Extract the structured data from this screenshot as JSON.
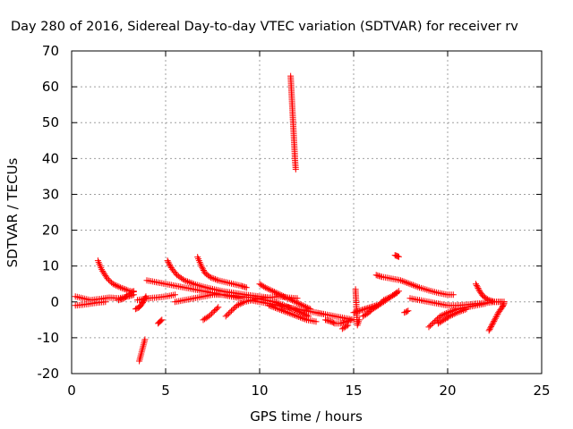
{
  "chart_data": {
    "type": "scatter",
    "title": "Day 280 of 2016, Sidereal Day-to-day VTEC variation (SDTVAR) for receiver rv",
    "xlabel": "GPS time / hours",
    "ylabel": "SDTVAR / TECUs",
    "xlim": [
      0,
      25
    ],
    "ylim": [
      -20,
      70
    ],
    "xticks": [
      0,
      5,
      10,
      15,
      20,
      25
    ],
    "yticks": [
      -20,
      -10,
      0,
      10,
      20,
      30,
      40,
      50,
      60,
      70
    ],
    "grid": true,
    "marker": "+",
    "series": [
      {
        "name": "SDTVAR",
        "color": "#ff0000",
        "segments": [
          {
            "x": [
              0.2,
              0.6,
              1.0,
              1.5,
              2.0,
              2.5,
              3.0,
              3.3
            ],
            "y": [
              1.5,
              1.0,
              0.5,
              0.8,
              1.2,
              1.0,
              1.5,
              2.0
            ]
          },
          {
            "x": [
              0.2,
              0.6,
              1.0,
              1.4,
              1.8
            ],
            "y": [
              -1.0,
              -0.8,
              -0.5,
              -0.2,
              0.0
            ]
          },
          {
            "x": [
              1.4,
              1.6,
              1.9,
              2.2,
              2.6,
              3.0,
              3.3
            ],
            "y": [
              11.5,
              9.0,
              6.5,
              5.0,
              4.0,
              3.2,
              2.8
            ]
          },
          {
            "x": [
              2.5,
              2.8,
              3.0,
              3.3
            ],
            "y": [
              0.5,
              1.0,
              2.0,
              3.0
            ]
          },
          {
            "x": [
              3.4,
              3.6,
              3.75,
              3.85,
              3.95
            ],
            "y": [
              -2.0,
              -1.5,
              -0.5,
              0.5,
              1.5
            ]
          },
          {
            "x": [
              3.6,
              3.65,
              3.7,
              3.75,
              3.8,
              3.85,
              3.9
            ],
            "y": [
              -16.5,
              -15.5,
              -14.5,
              -13.5,
              -12.5,
              -11.5,
              -10.5
            ]
          },
          {
            "x": [
              4.6,
              4.7,
              4.8
            ],
            "y": [
              -6.0,
              -5.5,
              -5.0
            ]
          },
          {
            "x": [
              3.5,
              4.0,
              4.5,
              5.0,
              5.5
            ],
            "y": [
              0.5,
              1.0,
              1.2,
              1.5,
              2.0
            ]
          },
          {
            "x": [
              4.0,
              4.5,
              5.0,
              5.5,
              6.0,
              6.5,
              7.0,
              7.5,
              8.0,
              8.5,
              9.0
            ],
            "y": [
              6.0,
              5.5,
              5.0,
              4.5,
              4.0,
              3.5,
              3.0,
              2.5,
              2.0,
              1.5,
              1.0
            ]
          },
          {
            "x": [
              5.1,
              5.3,
              5.6,
              6.0,
              6.5,
              7.0,
              7.5,
              8.0,
              8.5,
              9.0,
              9.5,
              10.0,
              10.5
            ],
            "y": [
              11.5,
              9.5,
              7.5,
              6.0,
              5.0,
              4.2,
              3.6,
              3.0,
              2.6,
              2.2,
              1.8,
              1.5,
              1.2
            ]
          },
          {
            "x": [
              5.5,
              6.0,
              6.5,
              7.0,
              7.5,
              8.0,
              8.5,
              9.0,
              9.5,
              10.0
            ],
            "y": [
              0.0,
              0.5,
              1.0,
              1.5,
              2.0,
              2.0,
              1.8,
              1.5,
              1.2,
              1.0
            ]
          },
          {
            "x": [
              6.7,
              6.9,
              7.1,
              7.4,
              7.8,
              8.2,
              8.6,
              9.0,
              9.3
            ],
            "y": [
              12.5,
              10.0,
              8.0,
              6.8,
              6.0,
              5.5,
              5.0,
              4.5,
              4.0
            ]
          },
          {
            "x": [
              7.0,
              7.3,
              7.6,
              7.8
            ],
            "y": [
              -5.0,
              -4.0,
              -2.5,
              -1.5
            ]
          },
          {
            "x": [
              8.2,
              8.5,
              8.8,
              9.2,
              9.6,
              10.0,
              10.5,
              11.0,
              11.5,
              12.0
            ],
            "y": [
              -4.0,
              -2.5,
              -1.0,
              0.0,
              0.5,
              1.0,
              1.2,
              1.5,
              1.2,
              1.0
            ]
          },
          {
            "x": [
              9.5,
              10.0,
              10.5,
              11.0,
              11.5,
              12.0,
              12.5,
              13.0,
              13.5
            ],
            "y": [
              0.5,
              0.0,
              -0.5,
              -1.0,
              -1.5,
              -2.0,
              -2.5,
              -3.0,
              -3.5
            ]
          },
          {
            "x": [
              9.8,
              10.3,
              10.8,
              11.3,
              11.8,
              12.2,
              12.6
            ],
            "y": [
              1.0,
              0.5,
              0.0,
              -1.0,
              -2.0,
              -3.0,
              -4.0
            ]
          },
          {
            "x": [
              10.0,
              10.3,
              10.7,
              11.1,
              11.5,
              11.9,
              12.3,
              12.7
            ],
            "y": [
              5.0,
              4.0,
              3.0,
              2.0,
              1.0,
              0.0,
              -1.0,
              -2.0
            ]
          },
          {
            "x": [
              10.5,
              11.0,
              11.5,
              12.0,
              12.5,
              13.0
            ],
            "y": [
              -1.0,
              -2.0,
              -3.0,
              -4.0,
              -5.0,
              -5.5
            ]
          },
          {
            "x": [
              11.65,
              11.68,
              11.71,
              11.74,
              11.77,
              11.8,
              11.83,
              11.86,
              11.89,
              11.92
            ],
            "y": [
              63,
              60,
              57,
              54,
              51,
              48,
              45,
              42,
              39,
              37
            ]
          },
          {
            "x": [
              13.5,
              13.8,
              14.0,
              14.3,
              14.6,
              14.9
            ],
            "y": [
              -5.0,
              -5.5,
              -6.0,
              -6.0,
              -5.5,
              -5.0
            ]
          },
          {
            "x": [
              13.0,
              13.5,
              14.0,
              14.5,
              15.0
            ],
            "y": [
              -3.0,
              -3.5,
              -4.0,
              -4.5,
              -5.0
            ]
          },
          {
            "x": [
              14.4,
              14.55,
              14.7
            ],
            "y": [
              -7.5,
              -7.0,
              -6.5
            ]
          },
          {
            "x": [
              15.1,
              15.2,
              15.3
            ],
            "y": [
              3.5,
              -6.5,
              -5.0
            ]
          },
          {
            "x": [
              15.0,
              15.3,
              15.6,
              15.9,
              16.2
            ],
            "y": [
              -3.0,
              -2.5,
              -2.0,
              -1.5,
              -1.0
            ]
          },
          {
            "x": [
              15.5,
              15.8,
              16.0,
              16.3,
              16.6,
              17.0,
              17.4
            ],
            "y": [
              -4.0,
              -3.0,
              -2.0,
              -1.0,
              0.0,
              1.5,
              3.0
            ]
          },
          {
            "x": [
              16.0,
              16.3,
              16.6,
              17.0,
              17.3
            ],
            "y": [
              -2.0,
              -1.0,
              0.5,
              1.5,
              2.5
            ]
          },
          {
            "x": [
              16.2,
              16.5,
              17.0,
              17.5,
              18.0,
              18.5,
              19.0,
              19.5,
              20.0,
              20.3
            ],
            "y": [
              7.5,
              7.0,
              6.5,
              6.0,
              5.0,
              4.0,
              3.2,
              2.5,
              2.0,
              2.0
            ]
          },
          {
            "x": [
              17.2,
              17.3,
              17.4
            ],
            "y": [
              13.0,
              12.8,
              12.6
            ]
          },
          {
            "x": [
              17.7,
              17.9
            ],
            "y": [
              -3.0,
              -2.5
            ]
          },
          {
            "x": [
              18.0,
              18.5,
              19.0,
              19.5,
              20.0,
              20.5,
              21.0,
              21.5,
              22.0,
              22.5,
              23.0
            ],
            "y": [
              1.0,
              0.5,
              0.0,
              -0.5,
              -1.0,
              -1.0,
              -0.8,
              -0.5,
              -0.3,
              0.0,
              0.0
            ]
          },
          {
            "x": [
              19.0,
              19.3,
              19.6,
              20.0,
              20.5,
              21.0,
              21.5,
              22.0
            ],
            "y": [
              -7.0,
              -5.5,
              -4.0,
              -3.0,
              -2.0,
              -1.5,
              -1.0,
              -0.5
            ]
          },
          {
            "x": [
              19.5,
              19.8,
              20.1,
              20.5,
              21.0
            ],
            "y": [
              -6.0,
              -5.0,
              -4.0,
              -3.0,
              -2.0
            ]
          },
          {
            "x": [
              21.5,
              21.7,
              21.9,
              22.2,
              22.5,
              22.8,
              23.0
            ],
            "y": [
              5.0,
              3.0,
              1.5,
              0.5,
              0.0,
              0.0,
              0.0
            ]
          },
          {
            "x": [
              22.2,
              22.35,
              22.5,
              22.7,
              22.9,
              23.0
            ],
            "y": [
              -8.0,
              -6.5,
              -5.0,
              -3.0,
              -1.5,
              -0.5
            ]
          }
        ]
      }
    ]
  }
}
